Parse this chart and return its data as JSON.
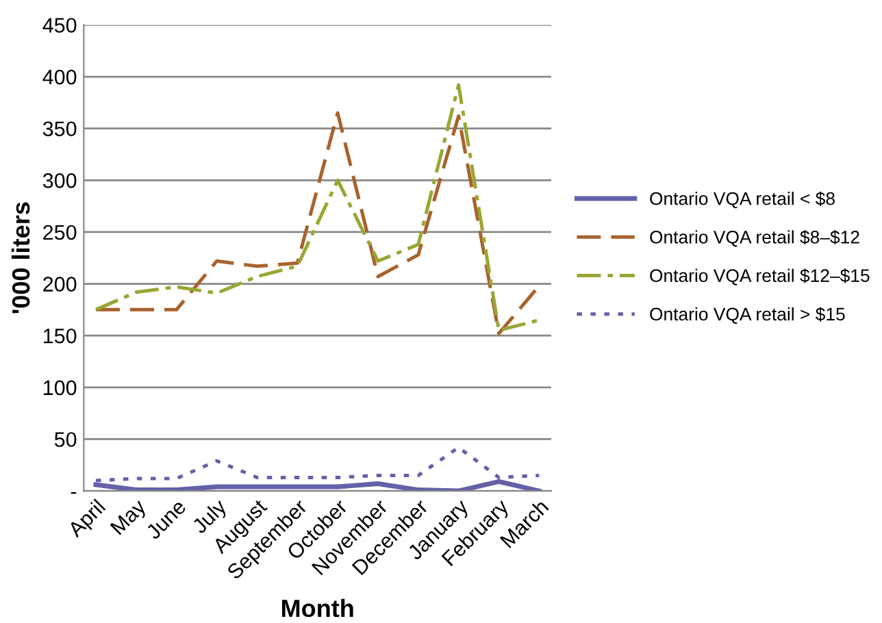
{
  "chart_data": {
    "type": "line",
    "xlabel": "Month",
    "ylabel": "'000 liters",
    "categories": [
      "April",
      "May",
      "June",
      "July",
      "August",
      "September",
      "October",
      "November",
      "December",
      "January",
      "February",
      "March"
    ],
    "series": [
      {
        "name": "Ontario VQA retail < $8",
        "color": "#6461a8",
        "line_style": "solid",
        "values": [
          6,
          1,
          1,
          4,
          4,
          4,
          4,
          7,
          1,
          0,
          9,
          0
        ]
      },
      {
        "name": "Ontario VQA retail $8–$12",
        "color": "#a8622c",
        "line_style": "dashed",
        "values": [
          175,
          175,
          175,
          222,
          217,
          220,
          365,
          207,
          228,
          362,
          152,
          198
        ]
      },
      {
        "name": "Ontario VQA retail $12–$15",
        "color": "#9aa633",
        "line_style": "dashdot",
        "values": [
          175,
          192,
          197,
          191,
          207,
          217,
          300,
          222,
          238,
          392,
          155,
          165
        ]
      },
      {
        "name": "Ontario VQA retail > $15",
        "color": "#6461a8",
        "line_style": "dotted",
        "values": [
          10,
          12,
          12,
          29,
          13,
          13,
          13,
          15,
          15,
          42,
          13,
          15
        ]
      }
    ],
    "ylim": [
      0,
      450
    ],
    "yticks": [
      {
        "value": 0,
        "label": "-"
      },
      50,
      100,
      150,
      200,
      250,
      300,
      350,
      400,
      450
    ],
    "grid": "y",
    "legend": "right",
    "marker": "none"
  }
}
